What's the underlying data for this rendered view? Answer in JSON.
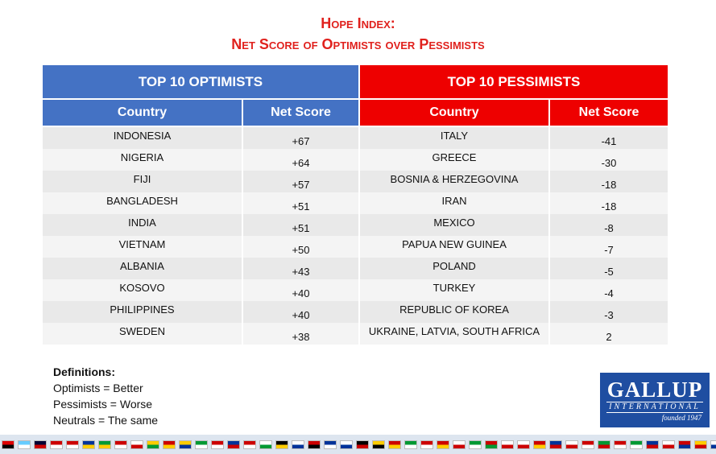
{
  "title": {
    "line1": "Hope Index:",
    "line2": "Net Score of Optimists over Pessimists"
  },
  "colors": {
    "title": "#e0211d",
    "optimists": "#4472c4",
    "pessimists": "#ee0000"
  },
  "chart_data": {
    "type": "table",
    "optimists": {
      "header": "TOP 10 OPTIMISTS",
      "columns": [
        "Country",
        "Net Score"
      ],
      "rows": [
        {
          "country": "INDONESIA",
          "score": "+67"
        },
        {
          "country": "NIGERIA",
          "score": "+64"
        },
        {
          "country": "FIJI",
          "score": "+57"
        },
        {
          "country": "BANGLADESH",
          "score": "+51"
        },
        {
          "country": "INDIA",
          "score": "+51"
        },
        {
          "country": "VIETNAM",
          "score": "+50"
        },
        {
          "country": "ALBANIA",
          "score": "+43"
        },
        {
          "country": "KOSOVO",
          "score": "+40"
        },
        {
          "country": "PHILIPPINES",
          "score": "+40"
        },
        {
          "country": "SWEDEN",
          "score": "+38"
        }
      ]
    },
    "pessimists": {
      "header": "TOP 10 PESSIMISTS",
      "columns": [
        "Country",
        "Net Score"
      ],
      "rows": [
        {
          "country": "ITALY",
          "score": "-41"
        },
        {
          "country": "GREECE",
          "score": "-30"
        },
        {
          "country": "BOSNIA & HERZEGOVINA",
          "score": "-18"
        },
        {
          "country": "IRAN",
          "score": "-18"
        },
        {
          "country": "MEXICO",
          "score": "-8"
        },
        {
          "country": "PAPUA NEW GUINEA",
          "score": "-7"
        },
        {
          "country": "POLAND",
          "score": "-5"
        },
        {
          "country": "TURKEY",
          "score": "-4"
        },
        {
          "country": "REPUBLIC OF KOREA",
          "score": "-3"
        },
        {
          "country": "UKRAINE, LATVIA, SOUTH AFRICA",
          "score": "2"
        }
      ]
    }
  },
  "definitions": {
    "heading": "Definitions:",
    "lines": [
      "Optimists = Better",
      "Pessimists = Worse",
      "Neutrals = The same"
    ]
  },
  "logo": {
    "main": "GALLUP",
    "sub": "INTERNATIONAL",
    "founded": "founded 1947"
  },
  "flag_colors": [
    [
      "#d00",
      "#000"
    ],
    [
      "#6cf",
      "#fff"
    ],
    [
      "#003",
      "#c00"
    ],
    [
      "#c00",
      "#fff"
    ],
    [
      "#c00",
      "#fff"
    ],
    [
      "#039",
      "#fc0"
    ],
    [
      "#093",
      "#fc0"
    ],
    [
      "#c00",
      "#fff"
    ],
    [
      "#fff",
      "#c00"
    ],
    [
      "#fc0",
      "#093"
    ],
    [
      "#c00",
      "#fc0"
    ],
    [
      "#fc0",
      "#039"
    ],
    [
      "#093",
      "#fff"
    ],
    [
      "#c00",
      "#fff"
    ],
    [
      "#039",
      "#c00"
    ],
    [
      "#c00",
      "#fff"
    ],
    [
      "#fff",
      "#093"
    ],
    [
      "#000",
      "#fc0"
    ],
    [
      "#fff",
      "#039"
    ],
    [
      "#c00",
      "#000"
    ],
    [
      "#039",
      "#fff"
    ],
    [
      "#fff",
      "#039"
    ],
    [
      "#000",
      "#c00"
    ],
    [
      "#fc0",
      "#000"
    ],
    [
      "#c00",
      "#fc0"
    ],
    [
      "#093",
      "#fff"
    ],
    [
      "#c00",
      "#fff"
    ],
    [
      "#c00",
      "#fc0"
    ],
    [
      "#fff",
      "#c00"
    ],
    [
      "#093",
      "#fff"
    ],
    [
      "#c00",
      "#093"
    ],
    [
      "#fff",
      "#c00"
    ],
    [
      "#fff",
      "#c00"
    ],
    [
      "#c00",
      "#fc0"
    ],
    [
      "#039",
      "#c00"
    ],
    [
      "#fff",
      "#c00"
    ],
    [
      "#c00",
      "#fff"
    ],
    [
      "#093",
      "#c00"
    ],
    [
      "#c00",
      "#fff"
    ],
    [
      "#093",
      "#fff"
    ],
    [
      "#039",
      "#c00"
    ],
    [
      "#fff",
      "#c00"
    ],
    [
      "#c00",
      "#039"
    ],
    [
      "#fc0",
      "#c00"
    ],
    [
      "#fff",
      "#039"
    ],
    [
      "#c00",
      "#fff"
    ],
    [
      "#039",
      "#fff"
    ],
    [
      "#c00",
      "#fff"
    ]
  ]
}
